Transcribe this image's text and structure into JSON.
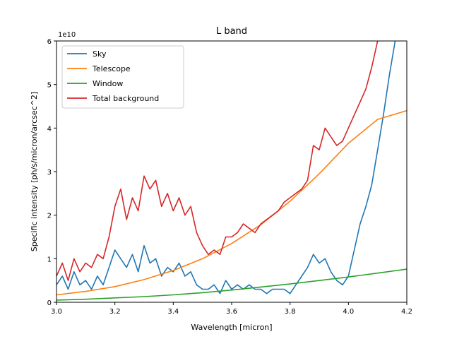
{
  "chart_data": {
    "type": "line",
    "title": "L band",
    "xlabel": "Wavelength [micron]",
    "ylabel": "Specific intensity [ph/s/micron/arcsec^2]",
    "y_scale_label": "1e10",
    "xlim": [
      3.0,
      4.2
    ],
    "ylim": [
      0,
      6
    ],
    "x_ticks": [
      "3.0",
      "3.2",
      "3.4",
      "3.6",
      "3.8",
      "4.0",
      "4.2"
    ],
    "y_ticks": [
      "0",
      "1",
      "2",
      "3",
      "4",
      "5",
      "6"
    ],
    "grid": false,
    "legend_position": "top-left",
    "series": [
      {
        "name": "Sky",
        "color": "#1f77b4",
        "x": [
          3.0,
          3.02,
          3.04,
          3.06,
          3.08,
          3.1,
          3.12,
          3.14,
          3.16,
          3.18,
          3.2,
          3.22,
          3.24,
          3.26,
          3.28,
          3.3,
          3.32,
          3.34,
          3.36,
          3.38,
          3.4,
          3.42,
          3.44,
          3.46,
          3.48,
          3.5,
          3.52,
          3.54,
          3.56,
          3.58,
          3.6,
          3.62,
          3.64,
          3.66,
          3.68,
          3.7,
          3.72,
          3.74,
          3.76,
          3.78,
          3.8,
          3.82,
          3.84,
          3.86,
          3.88,
          3.9,
          3.92,
          3.94,
          3.96,
          3.98,
          4.0,
          4.02,
          4.04,
          4.06,
          4.08,
          4.1,
          4.12,
          4.14,
          4.16
        ],
        "y": [
          0.4,
          0.6,
          0.3,
          0.7,
          0.4,
          0.5,
          0.3,
          0.6,
          0.4,
          0.8,
          1.2,
          1.0,
          0.8,
          1.1,
          0.7,
          1.3,
          0.9,
          1.0,
          0.6,
          0.8,
          0.7,
          0.9,
          0.6,
          0.7,
          0.4,
          0.3,
          0.3,
          0.4,
          0.2,
          0.5,
          0.3,
          0.4,
          0.3,
          0.4,
          0.3,
          0.3,
          0.2,
          0.3,
          0.3,
          0.3,
          0.2,
          0.4,
          0.6,
          0.8,
          1.1,
          0.9,
          1.0,
          0.7,
          0.5,
          0.4,
          0.6,
          1.2,
          1.8,
          2.2,
          2.7,
          3.5,
          4.3,
          5.2,
          6.0
        ]
      },
      {
        "name": "Telescope",
        "color": "#ff7f0e",
        "x": [
          3.0,
          3.1,
          3.2,
          3.3,
          3.4,
          3.5,
          3.6,
          3.7,
          3.8,
          3.9,
          4.0,
          4.1,
          4.2
        ],
        "y": [
          0.17,
          0.25,
          0.36,
          0.52,
          0.73,
          1.0,
          1.35,
          1.78,
          2.32,
          2.95,
          3.65,
          4.2,
          4.4
        ]
      },
      {
        "name": "Window",
        "color": "#2ca02c",
        "x": [
          3.0,
          3.1,
          3.2,
          3.3,
          3.4,
          3.5,
          3.6,
          3.7,
          3.8,
          3.9,
          4.0,
          4.1,
          4.2
        ],
        "y": [
          0.05,
          0.07,
          0.1,
          0.13,
          0.17,
          0.22,
          0.28,
          0.35,
          0.42,
          0.5,
          0.58,
          0.67,
          0.76
        ]
      },
      {
        "name": "Total background",
        "color": "#d62728",
        "x": [
          3.0,
          3.02,
          3.04,
          3.06,
          3.08,
          3.1,
          3.12,
          3.14,
          3.16,
          3.18,
          3.2,
          3.22,
          3.24,
          3.26,
          3.28,
          3.3,
          3.32,
          3.34,
          3.36,
          3.38,
          3.4,
          3.42,
          3.44,
          3.46,
          3.48,
          3.5,
          3.52,
          3.54,
          3.56,
          3.58,
          3.6,
          3.62,
          3.64,
          3.66,
          3.68,
          3.7,
          3.72,
          3.74,
          3.76,
          3.78,
          3.8,
          3.82,
          3.84,
          3.86,
          3.88,
          3.9,
          3.92,
          3.94,
          3.96,
          3.98,
          4.0,
          4.02,
          4.04,
          4.06,
          4.08,
          4.1
        ],
        "y": [
          0.6,
          0.9,
          0.5,
          1.0,
          0.7,
          0.9,
          0.8,
          1.1,
          1.0,
          1.5,
          2.2,
          2.6,
          1.9,
          2.4,
          2.1,
          2.9,
          2.6,
          2.8,
          2.2,
          2.5,
          2.1,
          2.4,
          2.0,
          2.2,
          1.6,
          1.3,
          1.1,
          1.2,
          1.1,
          1.5,
          1.5,
          1.6,
          1.8,
          1.7,
          1.6,
          1.8,
          1.9,
          2.0,
          2.1,
          2.3,
          2.4,
          2.5,
          2.6,
          2.8,
          3.6,
          3.5,
          4.0,
          3.8,
          3.6,
          3.7,
          4.0,
          4.3,
          4.6,
          4.9,
          5.4,
          6.0
        ]
      }
    ]
  }
}
